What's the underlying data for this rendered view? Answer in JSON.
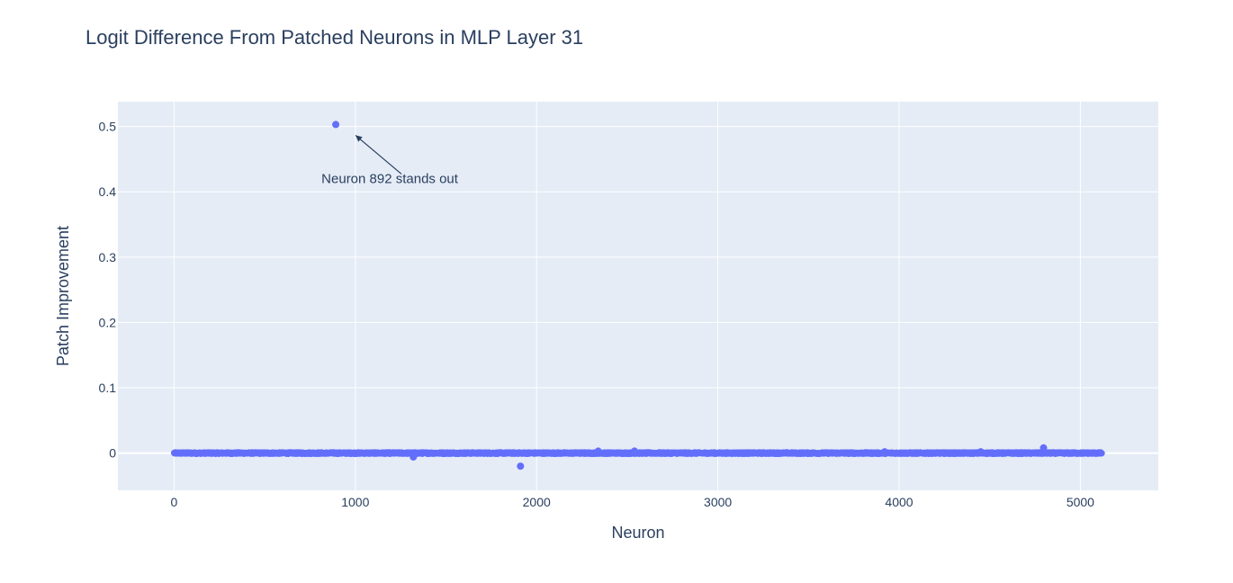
{
  "chart_data": {
    "type": "scatter",
    "title": "Logit Difference From Patched Neurons in MLP Layer 31",
    "xlabel": "Neuron",
    "ylabel": "Patch Improvement",
    "xlim": [
      -310,
      5430
    ],
    "ylim": [
      -0.057,
      0.538
    ],
    "xticks": [
      0,
      1000,
      2000,
      3000,
      4000,
      5000
    ],
    "xtick_labels": [
      "0",
      "1000",
      "2000",
      "3000",
      "4000",
      "5000"
    ],
    "yticks": [
      0,
      0.1,
      0.2,
      0.3,
      0.4,
      0.5
    ],
    "ytick_labels": [
      "0",
      "0.1",
      "0.2",
      "0.3",
      "0.4",
      "0.5"
    ],
    "grid": true,
    "marker_color": "#636efa",
    "plot_bgcolor": "#e5ecf6",
    "n_points": 5120,
    "baseline_value": 0,
    "baseline_jitter": 0.0012,
    "outliers": [
      {
        "x": 892,
        "y": 0.503
      },
      {
        "x": 1911,
        "y": -0.02
      },
      {
        "x": 4797,
        "y": 0.008
      },
      {
        "x": 1320,
        "y": -0.006
      },
      {
        "x": 2340,
        "y": 0.003
      },
      {
        "x": 2540,
        "y": 0.003
      },
      {
        "x": 4450,
        "y": 0.002
      },
      {
        "x": 3920,
        "y": 0.002
      }
    ],
    "annotation": {
      "text": "Neuron 892 stands out",
      "x": 892,
      "y": 0.503
    }
  }
}
